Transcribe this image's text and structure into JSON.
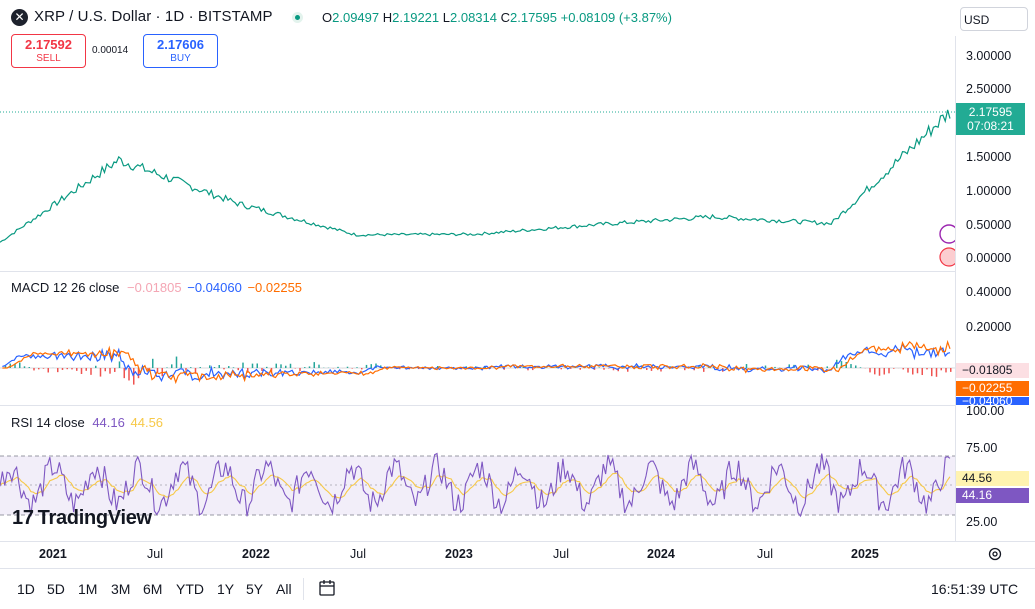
{
  "header": {
    "symbol_icon": "x-icon",
    "title": "XRP / U.S. Dollar · 1D · BITSTAMP",
    "ohlc": [
      {
        "k": "O",
        "v": "2.09497"
      },
      {
        "k": "H",
        "v": "2.19221"
      },
      {
        "k": "L",
        "v": "2.08314"
      },
      {
        "k": "C",
        "v": "2.17595"
      },
      {
        "k": "",
        "v": "+0.08109 (+3.87%)"
      }
    ],
    "currency": "USD"
  },
  "trade": {
    "sell_price": "2.17592",
    "sell_label": "SELL",
    "spread": "0.00014",
    "buy_price": "2.17606",
    "buy_label": "BUY"
  },
  "price_axis": {
    "ticks": [
      "3.00000",
      "2.50000",
      "2.00000",
      "1.50000",
      "1.00000",
      "0.50000",
      "0.00000"
    ],
    "current_price": "2.17595",
    "countdown": "07:08:21"
  },
  "macd": {
    "label": "MACD 12 26 close",
    "v1": "−0.01805",
    "v2": "−0.04060",
    "v3": "−0.02255",
    "ticks": [
      "0.40000",
      "0.20000"
    ],
    "tag1": "−0.01805",
    "tag2": "−0.02255",
    "tag3": "−0.04060"
  },
  "rsi": {
    "label": "RSI 14 close",
    "v1": "44.16",
    "v2": "44.56",
    "ticks": [
      "100.00",
      "75.00",
      "25.00"
    ],
    "tag1": "44.56",
    "tag2": "44.16"
  },
  "time_axis": [
    "2021",
    "Jul",
    "2022",
    "Jul",
    "2023",
    "Jul",
    "2024",
    "Jul",
    "2025"
  ],
  "ranges": [
    "1D",
    "5D",
    "1M",
    "3M",
    "6M",
    "YTD",
    "1Y",
    "5Y",
    "All"
  ],
  "clock": "16:51:39 UTC",
  "brand": "TradingView",
  "colors": {
    "up": "#089981",
    "down": "#f23645",
    "macd": "#2962ff",
    "signal": "#ff6d00",
    "rsi": "#7e57c2",
    "rsi_ma": "#f7c948"
  },
  "chart_data": {
    "type": "line",
    "title": "XRP / U.S. Dollar · 1D · BITSTAMP",
    "x": [
      "2021",
      "Jul",
      "2022",
      "Jul",
      "2023",
      "Jul",
      "2024",
      "Jul",
      "2025"
    ],
    "series": [
      {
        "name": "XRP / U.S. Dollar",
        "values": [
          0.22,
          1.45,
          0.8,
          0.33,
          0.34,
          0.48,
          0.6,
          0.5,
          2.17
        ]
      }
    ],
    "ylim": [
      0,
      3.4
    ]
  }
}
